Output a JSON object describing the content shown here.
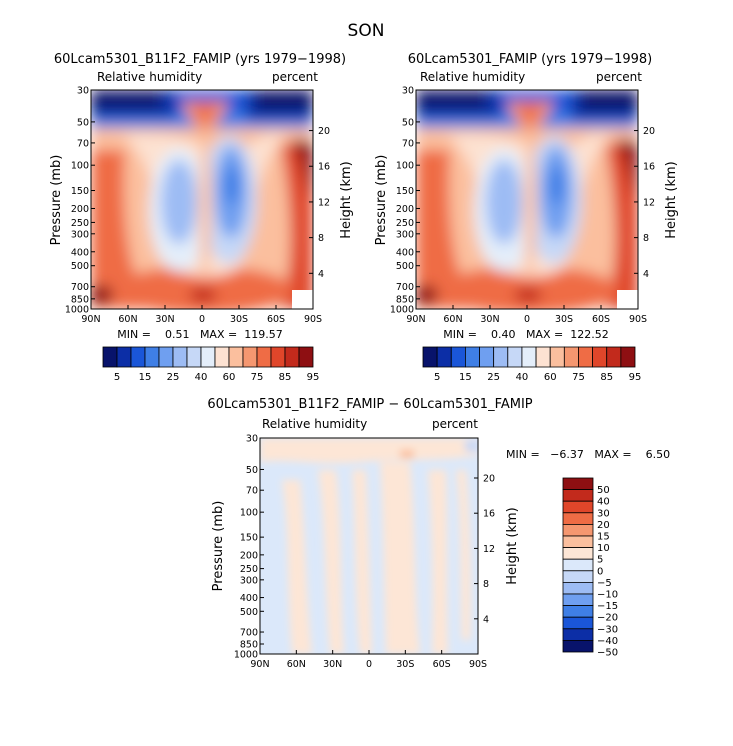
{
  "page_title": "SON",
  "panels": [
    {
      "title": "60Lcam5301_B11F2_FAMIP (yrs 1979−1998)",
      "left_label": "Relative humidity",
      "right_label": "percent",
      "ylabel": "Pressure (mb)",
      "y2label": "Height (km)",
      "stats": "MIN =    0.51   MAX =  119.57"
    },
    {
      "title": "60Lcam5301_FAMIP (yrs 1979−1998)",
      "left_label": "Relative humidity",
      "right_label": "percent",
      "ylabel": "Pressure (mb)",
      "y2label": "Height (km)",
      "stats": "MIN =    0.40   MAX =  122.52"
    },
    {
      "title": "60Lcam5301_B11F2_FAMIP − 60Lcam5301_FAMIP",
      "left_label": "Relative humidity",
      "right_label": "percent",
      "ylabel": "Pressure (mb)",
      "y2label": "Height (km)",
      "stats": "MIN =   −6.37   MAX =    6.50"
    }
  ],
  "colors": {
    "abs_scale": [
      "#08136b",
      "#0c2ea6",
      "#1a56d8",
      "#3f7fe6",
      "#6f9ff0",
      "#9dbcf4",
      "#c6d8f7",
      "#e4eefa",
      "#fde2d2",
      "#fbbf9e",
      "#f59770",
      "#ef6c45",
      "#e0462a",
      "#c22a1c",
      "#8e0f12"
    ],
    "diff_scale": [
      "#08136b",
      "#0c2ea6",
      "#1a56d8",
      "#3f7fe6",
      "#6f9ff0",
      "#9dbcf4",
      "#c6d8f7",
      "#dbe8fa",
      "#fde6d6",
      "#fbbf9e",
      "#f59770",
      "#ef6c45",
      "#e0462a",
      "#c22a1c",
      "#8e0f12"
    ]
  },
  "chart_data": [
    {
      "type": "heatmap",
      "title": "60Lcam5301_B11F2_FAMIP (yrs 1979−1998)",
      "variable": "Relative humidity",
      "units": "percent",
      "xlabel": "",
      "ylabel": "Pressure (mb)",
      "y2label": "Height (km)",
      "x_ticks": [
        "90N",
        "60N",
        "30N",
        "0",
        "30S",
        "60S",
        "90S"
      ],
      "y_ticks": [
        30,
        50,
        70,
        100,
        150,
        200,
        250,
        300,
        400,
        500,
        700,
        850,
        1000
      ],
      "y2_ticks": [
        20,
        16,
        12,
        8,
        4
      ],
      "y_scale": "log",
      "levels": [
        5,
        10,
        15,
        20,
        25,
        30,
        40,
        50,
        60,
        65,
        75,
        80,
        85,
        90,
        95
      ],
      "colorbar_labels": [
        "5",
        "15",
        "25",
        "40",
        "60",
        "75",
        "85",
        "95"
      ],
      "min": 0.51,
      "max": 119.57
    },
    {
      "type": "heatmap",
      "title": "60Lcam5301_FAMIP (yrs 1979−1998)",
      "variable": "Relative humidity",
      "units": "percent",
      "xlabel": "",
      "ylabel": "Pressure (mb)",
      "y2label": "Height (km)",
      "x_ticks": [
        "90N",
        "60N",
        "30N",
        "0",
        "30S",
        "60S",
        "90S"
      ],
      "y_ticks": [
        30,
        50,
        70,
        100,
        150,
        200,
        250,
        300,
        400,
        500,
        700,
        850,
        1000
      ],
      "y2_ticks": [
        20,
        16,
        12,
        8,
        4
      ],
      "y_scale": "log",
      "levels": [
        5,
        10,
        15,
        20,
        25,
        30,
        40,
        50,
        60,
        65,
        75,
        80,
        85,
        90,
        95
      ],
      "colorbar_labels": [
        "5",
        "15",
        "25",
        "40",
        "60",
        "75",
        "85",
        "95"
      ],
      "min": 0.4,
      "max": 122.52
    },
    {
      "type": "heatmap",
      "title": "60Lcam5301_B11F2_FAMIP − 60Lcam5301_FAMIP",
      "variable": "Relative humidity",
      "units": "percent",
      "xlabel": "",
      "ylabel": "Pressure (mb)",
      "y2label": "Height (km)",
      "x_ticks": [
        "90N",
        "60N",
        "30N",
        "0",
        "30S",
        "60S",
        "90S"
      ],
      "y_ticks": [
        30,
        50,
        70,
        100,
        150,
        200,
        250,
        300,
        400,
        500,
        700,
        850,
        1000
      ],
      "y2_ticks": [
        20,
        16,
        12,
        8,
        4
      ],
      "y_scale": "log",
      "levels": [
        -50,
        -40,
        -30,
        -20,
        -15,
        -10,
        -5,
        0,
        5,
        10,
        15,
        20,
        30,
        40,
        50
      ],
      "colorbar_labels": [
        "50",
        "40",
        "30",
        "20",
        "15",
        "10",
        "5",
        "0",
        "−5",
        "−10",
        "−15",
        "−20",
        "−30",
        "−40",
        "−50"
      ],
      "min": -6.37,
      "max": 6.5
    }
  ]
}
